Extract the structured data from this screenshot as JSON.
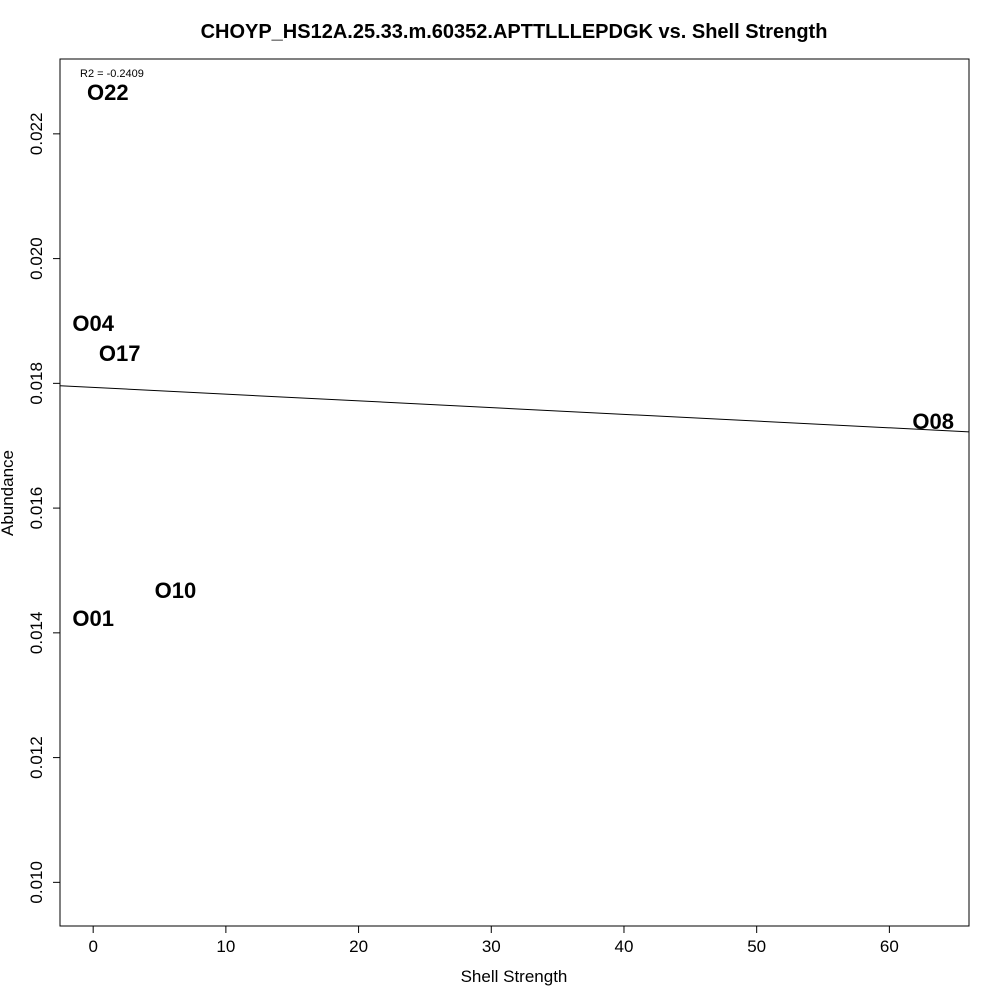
{
  "chart_data": {
    "type": "scatter",
    "title": "CHOYP_HS12A.25.33.m.60352.APTTLLLEPDGK vs. Shell Strength",
    "xlabel": "Shell Strength",
    "ylabel": "Abundance",
    "xlim": [
      -2.5,
      66
    ],
    "ylim": [
      0.0093,
      0.0232
    ],
    "x_ticks": [
      0,
      10,
      20,
      30,
      40,
      50,
      60
    ],
    "y_ticks": [
      0.01,
      0.012,
      0.014,
      0.016,
      0.018,
      0.02,
      0.022
    ],
    "x_tick_labels": [
      "0",
      "10",
      "20",
      "30",
      "40",
      "50",
      "60"
    ],
    "y_tick_labels": [
      "0.010",
      "0.012",
      "0.014",
      "0.016",
      "0.018",
      "0.020",
      "0.022"
    ],
    "grid": false,
    "points": [
      {
        "label": "O22",
        "x": 1.1,
        "y": 0.02267
      },
      {
        "label": "O04",
        "x": 0.0,
        "y": 0.01897
      },
      {
        "label": "O17",
        "x": 2.0,
        "y": 0.01849
      },
      {
        "label": "O08",
        "x": 63.3,
        "y": 0.0174
      },
      {
        "label": "O10",
        "x": 6.2,
        "y": 0.01469
      },
      {
        "label": "O01",
        "x": 0.0,
        "y": 0.01424
      }
    ],
    "fit_line": {
      "intercept": 0.017935,
      "slope": -1.08e-05
    },
    "annotation": "R2 = -0.2409"
  }
}
